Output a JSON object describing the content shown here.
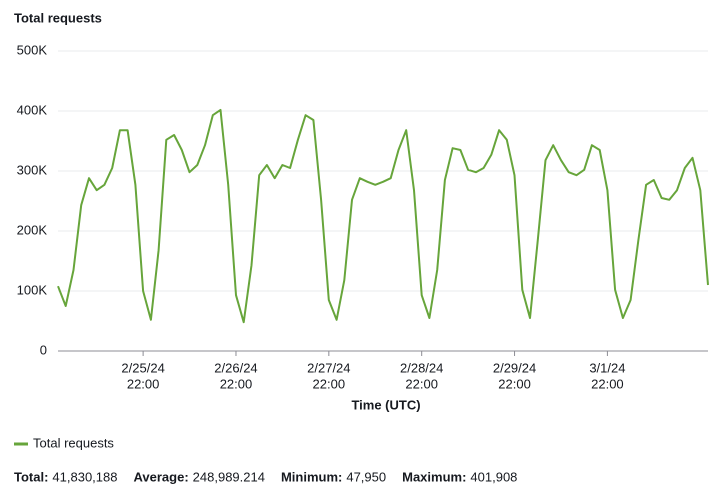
{
  "chart_data": {
    "type": "line",
    "title": "Total requests",
    "xlabel": "Time (UTC)",
    "x": [
      "2/25/24 00:00",
      "2/25/24 02:00",
      "2/25/24 04:00",
      "2/25/24 06:00",
      "2/25/24 08:00",
      "2/25/24 10:00",
      "2/25/24 12:00",
      "2/25/24 14:00",
      "2/25/24 16:00",
      "2/25/24 18:00",
      "2/25/24 20:00",
      "2/25/24 22:00",
      "2/26/24 00:00",
      "2/26/24 02:00",
      "2/26/24 04:00",
      "2/26/24 06:00",
      "2/26/24 08:00",
      "2/26/24 10:00",
      "2/26/24 12:00",
      "2/26/24 14:00",
      "2/26/24 16:00",
      "2/26/24 18:00",
      "2/26/24 20:00",
      "2/26/24 22:00",
      "2/27/24 00:00",
      "2/27/24 02:00",
      "2/27/24 04:00",
      "2/27/24 06:00",
      "2/27/24 08:00",
      "2/27/24 10:00",
      "2/27/24 12:00",
      "2/27/24 14:00",
      "2/27/24 16:00",
      "2/27/24 18:00",
      "2/27/24 20:00",
      "2/27/24 22:00",
      "2/28/24 00:00",
      "2/28/24 02:00",
      "2/28/24 04:00",
      "2/28/24 06:00",
      "2/28/24 08:00",
      "2/28/24 10:00",
      "2/28/24 12:00",
      "2/28/24 14:00",
      "2/28/24 16:00",
      "2/28/24 18:00",
      "2/28/24 20:00",
      "2/28/24 22:00",
      "2/29/24 00:00",
      "2/29/24 02:00",
      "2/29/24 04:00",
      "2/29/24 06:00",
      "2/29/24 08:00",
      "2/29/24 10:00",
      "2/29/24 12:00",
      "2/29/24 14:00",
      "2/29/24 16:00",
      "2/29/24 18:00",
      "2/29/24 20:00",
      "2/29/24 22:00",
      "3/1/24 00:00",
      "3/1/24 02:00",
      "3/1/24 04:00",
      "3/1/24 06:00",
      "3/1/24 08:00",
      "3/1/24 10:00",
      "3/1/24 12:00",
      "3/1/24 14:00",
      "3/1/24 16:00",
      "3/1/24 18:00",
      "3/1/24 20:00",
      "3/1/24 22:00",
      "3/2/24 00:00",
      "3/2/24 02:00",
      "3/2/24 04:00",
      "3/2/24 06:00",
      "3/2/24 08:00",
      "3/2/24 10:00",
      "3/2/24 12:00",
      "3/2/24 14:00",
      "3/2/24 16:00",
      "3/2/24 18:00",
      "3/2/24 20:00",
      "3/2/24 22:00",
      "3/3/24 00:00"
    ],
    "series": [
      {
        "name": "Total requests",
        "color": "#67a53b",
        "values": [
          108000,
          75000,
          135000,
          243000,
          288000,
          268000,
          277000,
          305000,
          368000,
          368000,
          277000,
          100000,
          52000,
          168000,
          352000,
          360000,
          335000,
          298000,
          310000,
          343000,
          393000,
          401908,
          277000,
          93000,
          47950,
          143000,
          293000,
          310000,
          288000,
          310000,
          305000,
          352000,
          393000,
          385000,
          252000,
          85000,
          52000,
          118000,
          252000,
          288000,
          282000,
          277000,
          282000,
          288000,
          335000,
          368000,
          268000,
          93000,
          55000,
          135000,
          285000,
          338000,
          335000,
          302000,
          298000,
          305000,
          327000,
          368000,
          352000,
          293000,
          102000,
          55000,
          185000,
          318000,
          343000,
          318000,
          298000,
          293000,
          302000,
          343000,
          335000,
          268000,
          102000,
          55000,
          85000,
          185000,
          277000,
          285000,
          255000,
          252000,
          268000,
          305000,
          322000,
          268000,
          110000
        ]
      }
    ],
    "xlim": [
      "2/25/24 00:00",
      "3/3/24 00:00"
    ],
    "xticks": [
      {
        "value": "2/25/24 22:00",
        "label": [
          "2/25/24",
          "22:00"
        ]
      },
      {
        "value": "2/26/24 22:00",
        "label": [
          "2/26/24",
          "22:00"
        ]
      },
      {
        "value": "2/27/24 22:00",
        "label": [
          "2/27/24",
          "22:00"
        ]
      },
      {
        "value": "2/28/24 22:00",
        "label": [
          "2/28/24",
          "22:00"
        ]
      },
      {
        "value": "2/29/24 22:00",
        "label": [
          "2/29/24",
          "22:00"
        ]
      },
      {
        "value": "3/1/24 22:00",
        "label": [
          "3/1/24",
          "22:00"
        ]
      }
    ],
    "ylim": [
      0,
      500000
    ],
    "yticks": [
      0,
      {
        "value": 100000,
        "label": "100K"
      },
      {
        "value": 200000,
        "label": "200K"
      },
      {
        "value": 300000,
        "label": "300K"
      },
      {
        "value": 400000,
        "label": "400K"
      },
      {
        "value": 500000,
        "label": "500K"
      }
    ],
    "grid": true,
    "legend": "bottom-left",
    "summary": [
      {
        "label": "Total:",
        "value": "41,830,188"
      },
      {
        "label": "Average:",
        "value": "248,989.214"
      },
      {
        "label": "Minimum:",
        "value": "47,950"
      },
      {
        "label": "Maximum:",
        "value": "401,908"
      }
    ]
  }
}
